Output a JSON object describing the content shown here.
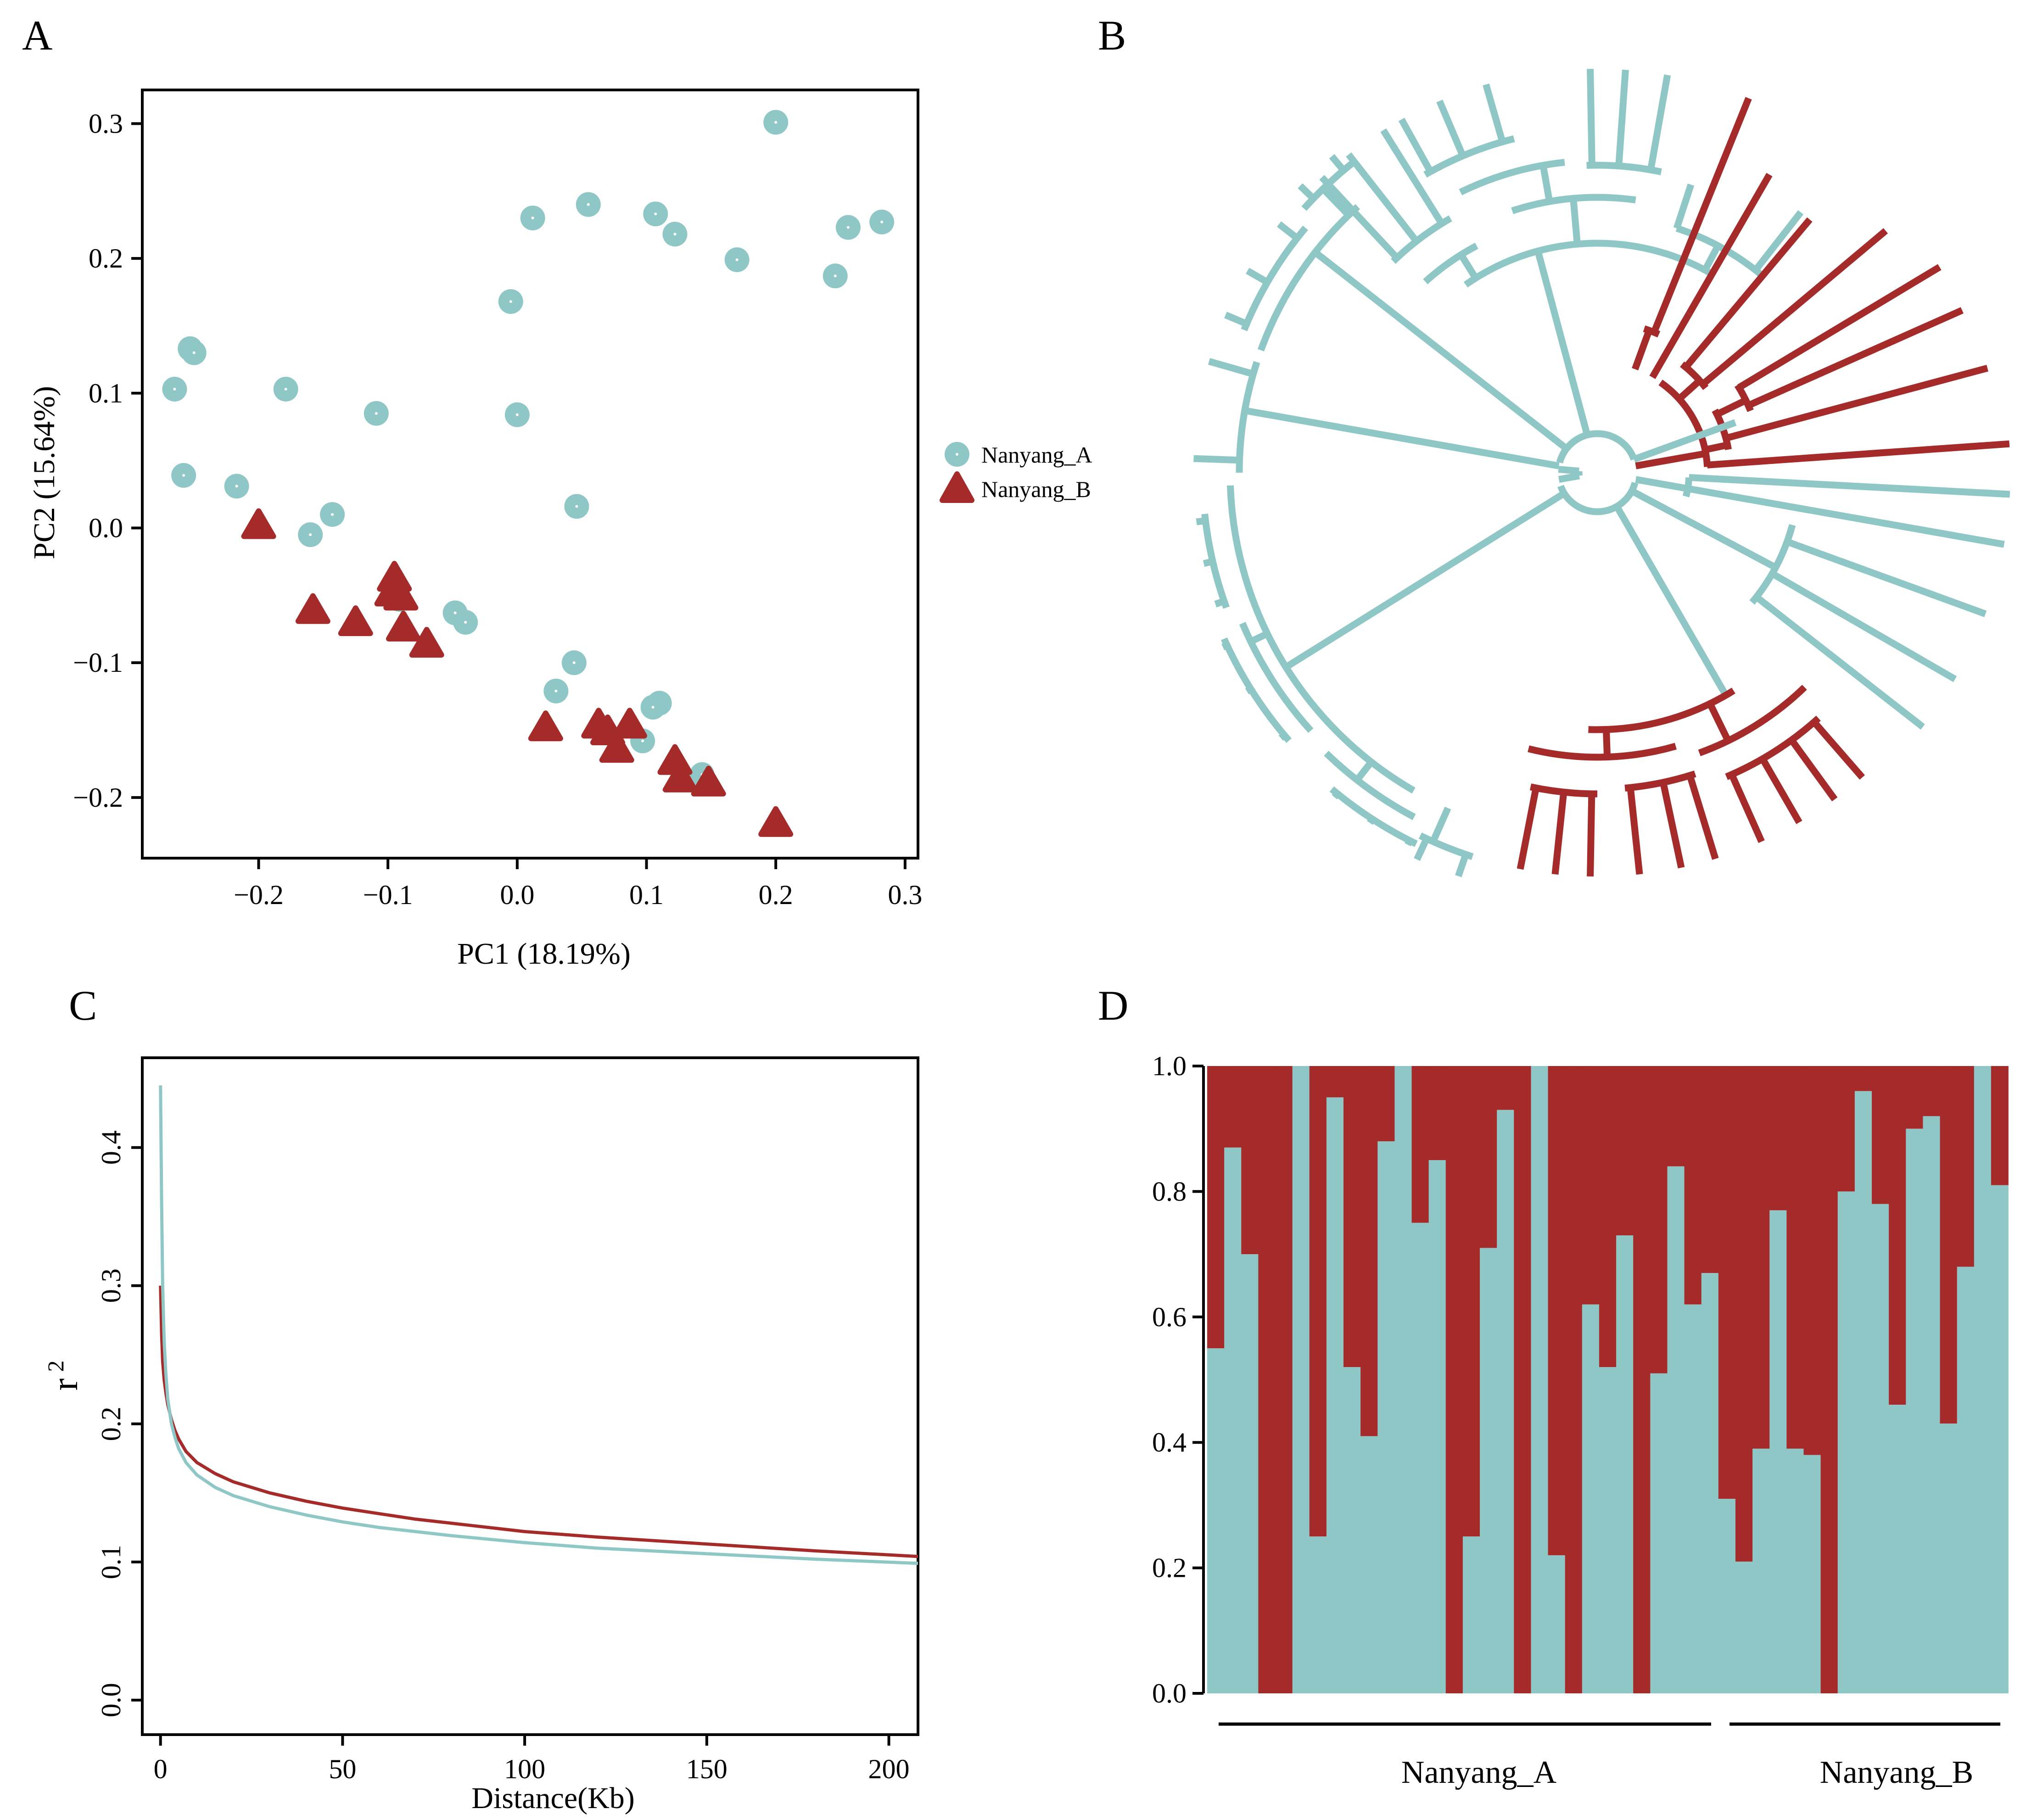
{
  "colors": {
    "teal": "#8FC7C6",
    "red": "#A52A2A",
    "axis": "#000000"
  },
  "chart_data": [
    {
      "panel": "A",
      "type": "scatter",
      "xlabel": "PC1 (18.19%)",
      "ylabel": "PC2 (15.64%)",
      "xlim": [
        -0.29,
        0.31
      ],
      "ylim": [
        -0.245,
        0.325
      ],
      "xticks": [
        -0.2,
        -0.1,
        0.0,
        0.1,
        0.2,
        0.3
      ],
      "xtick_labels": [
        "−0.2",
        "−0.1",
        "0.0",
        "0.1",
        "0.2",
        "0.3"
      ],
      "yticks": [
        0.3,
        0.2,
        0.1,
        0.0,
        -0.1,
        -0.2
      ],
      "ytick_labels": [
        "0.3",
        "0.2",
        "0.1",
        "0.0",
        "−0.1",
        "−0.2"
      ],
      "legend": [
        "Nanyang_A",
        "Nanyang_B"
      ],
      "series": [
        {
          "name": "Nanyang_A",
          "marker": "circle",
          "points": [
            [
              0.2,
              0.301
            ],
            [
              0.055,
              0.24
            ],
            [
              0.107,
              0.233
            ],
            [
              0.012,
              0.23
            ],
            [
              0.256,
              0.223
            ],
            [
              0.282,
              0.227
            ],
            [
              0.122,
              0.218
            ],
            [
              0.17,
              0.199
            ],
            [
              0.246,
              0.187
            ],
            [
              -0.005,
              0.168
            ],
            [
              -0.253,
              0.133
            ],
            [
              -0.25,
              0.13
            ],
            [
              -0.265,
              0.103
            ],
            [
              -0.179,
              0.103
            ],
            [
              -0.109,
              0.085
            ],
            [
              0.0,
              0.084
            ],
            [
              -0.258,
              0.039
            ],
            [
              -0.217,
              0.031
            ],
            [
              0.046,
              0.016
            ],
            [
              -0.143,
              0.01
            ],
            [
              -0.16,
              -0.005
            ],
            [
              -0.091,
              -0.053
            ],
            [
              -0.048,
              -0.063
            ],
            [
              -0.04,
              -0.07
            ],
            [
              0.044,
              -0.1
            ],
            [
              0.03,
              -0.121
            ],
            [
              0.11,
              -0.13
            ],
            [
              0.105,
              -0.133
            ],
            [
              0.097,
              -0.158
            ],
            [
              0.143,
              -0.183
            ]
          ]
        },
        {
          "name": "Nanyang_B",
          "marker": "triangle",
          "points": [
            [
              -0.2,
              0.003
            ],
            [
              -0.095,
              -0.036
            ],
            [
              -0.097,
              -0.047
            ],
            [
              -0.09,
              -0.05
            ],
            [
              -0.158,
              -0.06
            ],
            [
              -0.125,
              -0.069
            ],
            [
              -0.088,
              -0.073
            ],
            [
              -0.07,
              -0.085
            ],
            [
              0.022,
              -0.147
            ],
            [
              0.063,
              -0.145
            ],
            [
              0.07,
              -0.15
            ],
            [
              0.087,
              -0.145
            ],
            [
              0.077,
              -0.163
            ],
            [
              0.122,
              -0.172
            ],
            [
              0.126,
              -0.185
            ],
            [
              0.148,
              -0.188
            ],
            [
              0.2,
              -0.218
            ]
          ]
        }
      ]
    },
    {
      "panel": "B",
      "type": "dendrogram",
      "title": "",
      "groups": [
        "Nanyang_A",
        "Nanyang_B"
      ]
    },
    {
      "panel": "C",
      "type": "line",
      "xlabel": "Distance(Kb)",
      "ylabel": "r",
      "ylabel_sup": "2",
      "xlim": [
        -5,
        208
      ],
      "ylim": [
        -0.025,
        0.465
      ],
      "xticks": [
        0,
        50,
        100,
        150,
        200
      ],
      "xtick_labels": [
        "0",
        "50",
        "100",
        "150",
        "200"
      ],
      "yticks": [
        0.0,
        0.1,
        0.2,
        0.3,
        0.4
      ],
      "ytick_labels": [
        "0.0",
        "0.1",
        "0.2",
        "0.3",
        "0.4"
      ],
      "series": [
        {
          "name": "Nanyang_A",
          "x": [
            0,
            0.3,
            0.6,
            1,
            1.5,
            2,
            3,
            4,
            5,
            7,
            10,
            15,
            20,
            30,
            40,
            50,
            60,
            70,
            80,
            100,
            120,
            150,
            180,
            208
          ],
          "values": [
            0.445,
            0.36,
            0.3,
            0.26,
            0.235,
            0.218,
            0.2,
            0.19,
            0.182,
            0.172,
            0.163,
            0.154,
            0.148,
            0.14,
            0.134,
            0.129,
            0.125,
            0.122,
            0.119,
            0.114,
            0.11,
            0.106,
            0.102,
            0.099
          ]
        },
        {
          "name": "Nanyang_B",
          "x": [
            0,
            0.3,
            0.6,
            1,
            1.5,
            2,
            3,
            4,
            5,
            7,
            10,
            15,
            20,
            30,
            40,
            50,
            60,
            70,
            80,
            100,
            120,
            150,
            180,
            208
          ],
          "values": [
            0.3,
            0.265,
            0.245,
            0.232,
            0.222,
            0.214,
            0.203,
            0.195,
            0.189,
            0.18,
            0.172,
            0.164,
            0.158,
            0.15,
            0.144,
            0.139,
            0.135,
            0.131,
            0.128,
            0.122,
            0.118,
            0.113,
            0.108,
            0.104
          ]
        }
      ]
    },
    {
      "panel": "D",
      "type": "bar",
      "stacked": true,
      "ylim": [
        0,
        1
      ],
      "yticks": [
        0.0,
        0.2,
        0.4,
        0.6,
        0.8,
        1.0
      ],
      "ytick_labels": [
        "0.0",
        "0.2",
        "0.4",
        "0.6",
        "0.8",
        "1.0"
      ],
      "group_labels": [
        "Nanyang_A",
        "Nanyang_B"
      ],
      "group_sizes": [
        30,
        17
      ],
      "series": [
        {
          "name": "cluster_teal",
          "values": [
            0.55,
            0.87,
            0.7,
            0.0,
            0.0,
            1.0,
            0.25,
            0.95,
            0.52,
            0.41,
            0.88,
            1.0,
            0.75,
            0.85,
            0.0,
            0.25,
            0.71,
            0.93,
            0.0,
            1.0,
            0.22,
            0.0,
            0.62,
            0.52,
            0.73,
            0.0,
            0.51,
            0.84,
            0.62,
            0.67,
            0.31,
            0.21,
            0.39,
            0.77,
            0.39,
            0.38,
            0.0,
            0.8,
            0.96,
            0.78,
            0.46,
            0.9,
            0.92,
            0.43,
            0.68,
            1.0,
            0.81
          ]
        },
        {
          "name": "cluster_red",
          "values": [
            0.45,
            0.13,
            0.3,
            1.0,
            1.0,
            0.0,
            0.75,
            0.05,
            0.48,
            0.59,
            0.12,
            0.0,
            0.25,
            0.15,
            1.0,
            0.75,
            0.29,
            0.07,
            1.0,
            0.0,
            0.78,
            1.0,
            0.38,
            0.48,
            0.27,
            1.0,
            0.49,
            0.16,
            0.38,
            0.33,
            0.69,
            0.79,
            0.61,
            0.23,
            0.61,
            0.62,
            1.0,
            0.2,
            0.04,
            0.22,
            0.54,
            0.1,
            0.08,
            0.57,
            0.32,
            0.0,
            0.19
          ]
        }
      ]
    }
  ],
  "panel_labels": {
    "a": "A",
    "b": "B",
    "c": "C",
    "d": "D"
  }
}
